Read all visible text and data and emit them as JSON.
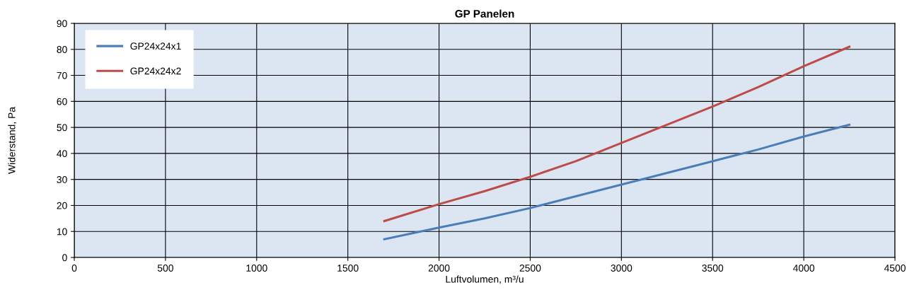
{
  "chart_data": {
    "type": "line",
    "title": "GP Panelen",
    "xlabel": "Luftvolumen, m³/u",
    "ylabel": "Widerstand, Pa",
    "series": [
      {
        "name": "GP24x24x1",
        "color": "#4a7ebb",
        "x": [
          1700,
          2000,
          2250,
          2500,
          2750,
          3000,
          3250,
          3500,
          3750,
          4000,
          4250
        ],
        "values": [
          7,
          11.5,
          15,
          19,
          23.5,
          28,
          32.5,
          37,
          41.5,
          46.5,
          51
        ]
      },
      {
        "name": "GP24x24x2",
        "color": "#be4b48",
        "x": [
          1700,
          2000,
          2250,
          2500,
          2750,
          3000,
          3250,
          3500,
          3750,
          4000,
          4250
        ],
        "values": [
          14,
          20.5,
          25.5,
          31,
          37,
          44,
          51,
          58,
          65.5,
          73.5,
          81
        ]
      }
    ],
    "xlim": [
      0,
      4500
    ],
    "xticks": [
      0,
      500,
      1000,
      1500,
      2000,
      2500,
      3000,
      3500,
      4000,
      4500
    ],
    "ylim": [
      0,
      90
    ],
    "yticks": [
      0,
      10,
      20,
      30,
      40,
      50,
      60,
      70,
      80,
      90
    ],
    "grid": true,
    "legend": "top left",
    "marker": "none",
    "line_style": "solid"
  }
}
